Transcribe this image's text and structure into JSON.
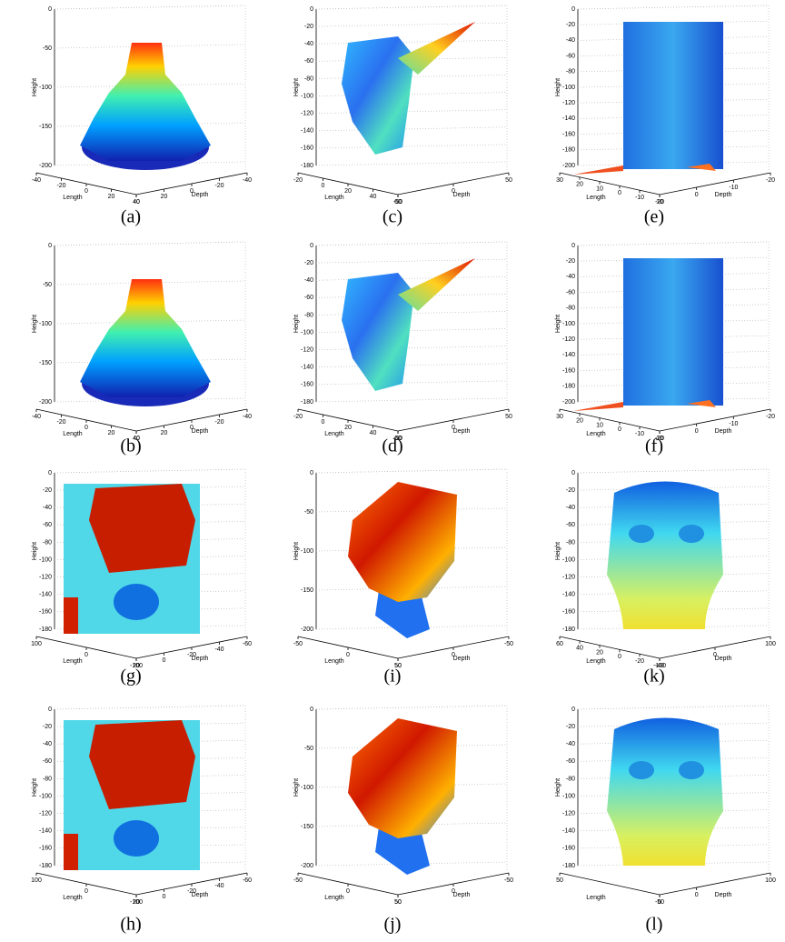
{
  "figure": {
    "panels": [
      {
        "caption": "(a)",
        "z_label": "Height",
        "z_ticks": [
          0,
          -50,
          -100,
          -150,
          -200
        ],
        "x_label": "Length",
        "x_ticks": [
          -40,
          -20,
          0,
          20,
          40
        ],
        "y_label": "Depth",
        "y_ticks": [
          40,
          20,
          0,
          -20,
          -40
        ]
      },
      {
        "caption": "(c)",
        "z_label": "Height",
        "z_ticks": [
          0,
          -20,
          -40,
          -60,
          -80,
          -100,
          -120,
          -140,
          -160,
          -180
        ],
        "x_label": "Length",
        "x_ticks": [
          -20,
          0,
          20,
          40,
          60
        ],
        "y_label": "Depth",
        "y_ticks": [
          -50,
          0,
          50
        ]
      },
      {
        "caption": "(e)",
        "z_label": "Height",
        "z_ticks": [
          0,
          -20,
          -40,
          -60,
          -80,
          -100,
          -120,
          -140,
          -160,
          -180,
          -200
        ],
        "x_label": "Length",
        "x_ticks": [
          30,
          20,
          10,
          0,
          -10,
          -20
        ],
        "y_label": "Depth",
        "y_ticks": [
          10,
          0,
          -10,
          -20
        ]
      },
      {
        "caption": "(b)",
        "z_label": "Height",
        "z_ticks": [
          0,
          -50,
          -100,
          -150,
          -200
        ],
        "x_label": "Length",
        "x_ticks": [
          -40,
          -20,
          0,
          20,
          40
        ],
        "y_label": "Depth",
        "y_ticks": [
          40,
          20,
          0,
          -20,
          -40
        ]
      },
      {
        "caption": "(d)",
        "z_label": "Height",
        "z_ticks": [
          0,
          -20,
          -40,
          -60,
          -80,
          -100,
          -120,
          -140,
          -160,
          -180
        ],
        "x_label": "Length",
        "x_ticks": [
          -20,
          0,
          20,
          40,
          60
        ],
        "y_label": "Depth",
        "y_ticks": [
          -50,
          0,
          50
        ]
      },
      {
        "caption": "(f)",
        "z_label": "Height",
        "z_ticks": [
          0,
          -20,
          -40,
          -60,
          -80,
          -100,
          -120,
          -140,
          -160,
          -180,
          -200
        ],
        "x_label": "Length",
        "x_ticks": [
          30,
          20,
          10,
          0,
          -10,
          -20
        ],
        "y_label": "Depth",
        "y_ticks": [
          10,
          0,
          -10,
          -20
        ]
      },
      {
        "caption": "(g)",
        "z_label": "Height",
        "z_ticks": [
          0,
          -20,
          -40,
          -60,
          -80,
          -100,
          -120,
          -140,
          -160,
          -180
        ],
        "x_label": "Length",
        "x_ticks": [
          100,
          0,
          -100
        ],
        "y_label": "Depth",
        "y_ticks": [
          20,
          0,
          -20,
          -40,
          -60
        ]
      },
      {
        "caption": "(i)",
        "z_label": "Height",
        "z_ticks": [
          0,
          -50,
          -100,
          -150,
          -200
        ],
        "x_label": "Length",
        "x_ticks": [
          -50,
          0,
          50
        ],
        "y_label": "Depth",
        "y_ticks": [
          50,
          0,
          -50
        ]
      },
      {
        "caption": "(k)",
        "z_label": "Height",
        "z_ticks": [
          0,
          -20,
          -40,
          -60,
          -80,
          -100,
          -120,
          -140,
          -160,
          -180
        ],
        "x_label": "Length",
        "x_ticks": [
          60,
          40,
          20,
          0,
          -20,
          -40
        ],
        "y_label": "Depth",
        "y_ticks": [
          -100,
          0,
          100
        ]
      },
      {
        "caption": "(h)",
        "z_label": "Height",
        "z_ticks": [
          0,
          -20,
          -40,
          -60,
          -80,
          -100,
          -120,
          -140,
          -160,
          -180
        ],
        "x_label": "Length",
        "x_ticks": [
          100,
          0,
          -100
        ],
        "y_label": "Depth",
        "y_ticks": [
          20,
          0,
          -20,
          -40,
          -60
        ]
      },
      {
        "caption": "(j)",
        "z_label": "Height",
        "z_ticks": [
          0,
          -50,
          -100,
          -150,
          -200
        ],
        "x_label": "Length",
        "x_ticks": [
          -50,
          0,
          50
        ],
        "y_label": "Depth",
        "y_ticks": [
          50,
          0,
          -50
        ]
      },
      {
        "caption": "(l)",
        "z_label": "Height",
        "z_ticks": [
          0,
          -20,
          -40,
          -60,
          -80,
          -100,
          -120,
          -140,
          -160,
          -180
        ],
        "x_label": "Length",
        "x_ticks": [
          50,
          0
        ],
        "y_label": "Depth",
        "y_ticks": [
          -50,
          0,
          100
        ]
      }
    ]
  }
}
